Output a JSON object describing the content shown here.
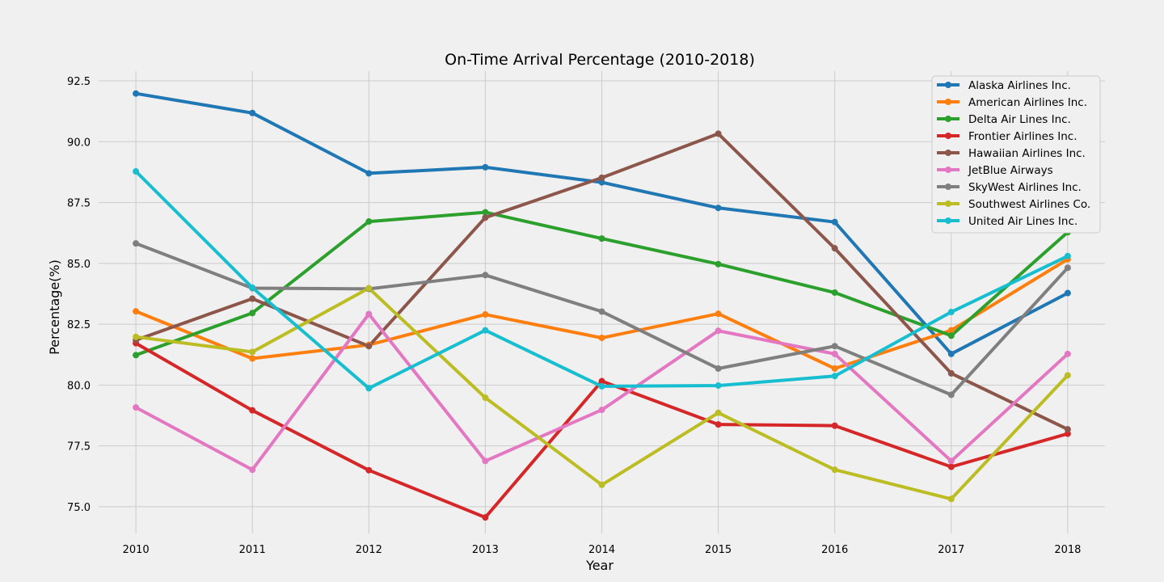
{
  "chart_data": {
    "type": "line",
    "title": "On-Time Arrival Percentage (2010-2018)",
    "xlabel": "Year",
    "ylabel": "Percentage(%)",
    "x": [
      2010,
      2011,
      2012,
      2013,
      2014,
      2015,
      2016,
      2017,
      2018
    ],
    "ylim": [
      73.9,
      92.9
    ],
    "yticks": [
      75.0,
      77.5,
      80.0,
      82.5,
      85.0,
      87.5,
      90.0,
      92.5
    ],
    "ytick_labels": [
      "75.0",
      "77.5",
      "80.0",
      "82.5",
      "85.0",
      "87.5",
      "90.0",
      "92.5"
    ],
    "xtick_labels": [
      "2010",
      "2011",
      "2012",
      "2013",
      "2014",
      "2015",
      "2016",
      "2017",
      "2018"
    ],
    "grid": true,
    "legend_position": "top-right",
    "series": [
      {
        "name": "Alaska Airlines Inc.",
        "color": "#1f77b4",
        "values": [
          91.98,
          91.18,
          88.7,
          88.95,
          88.33,
          87.28,
          86.7,
          81.28,
          83.78
        ]
      },
      {
        "name": "American Airlines Inc.",
        "color": "#ff7f0e",
        "values": [
          83.03,
          81.09,
          81.65,
          82.9,
          81.94,
          82.93,
          80.68,
          82.25,
          85.17
        ]
      },
      {
        "name": "Delta Air Lines Inc.",
        "color": "#2ca02c",
        "values": [
          81.23,
          82.96,
          86.72,
          87.1,
          86.02,
          84.97,
          83.8,
          82.03,
          86.28
        ]
      },
      {
        "name": "Frontier Airlines Inc.",
        "color": "#d62728",
        "values": [
          81.72,
          78.96,
          76.5,
          74.56,
          80.16,
          78.38,
          78.33,
          76.64,
          78.0
        ]
      },
      {
        "name": "Hawaiian Airlines Inc.",
        "color": "#8c564b",
        "values": [
          81.85,
          83.55,
          81.6,
          86.88,
          88.52,
          90.33,
          85.62,
          80.48,
          78.18
        ]
      },
      {
        "name": "JetBlue Airways",
        "color": "#e377c2",
        "values": [
          79.08,
          76.52,
          82.92,
          76.88,
          78.98,
          82.23,
          81.28,
          76.88,
          81.28
        ]
      },
      {
        "name": "SkyWest Airlines Inc.",
        "color": "#7f7f7f",
        "values": [
          85.82,
          83.98,
          83.95,
          84.52,
          83.02,
          80.68,
          81.6,
          79.6,
          84.82
        ]
      },
      {
        "name": "Southwest Airlines Co.",
        "color": "#bcbd22",
        "values": [
          81.98,
          81.36,
          83.98,
          79.48,
          75.9,
          78.86,
          76.52,
          75.32,
          80.4
        ]
      },
      {
        "name": "United Air Lines Inc.",
        "color": "#17becf",
        "values": [
          88.78,
          84.0,
          79.87,
          82.25,
          79.95,
          79.98,
          80.37,
          83.0,
          85.3
        ]
      }
    ]
  }
}
